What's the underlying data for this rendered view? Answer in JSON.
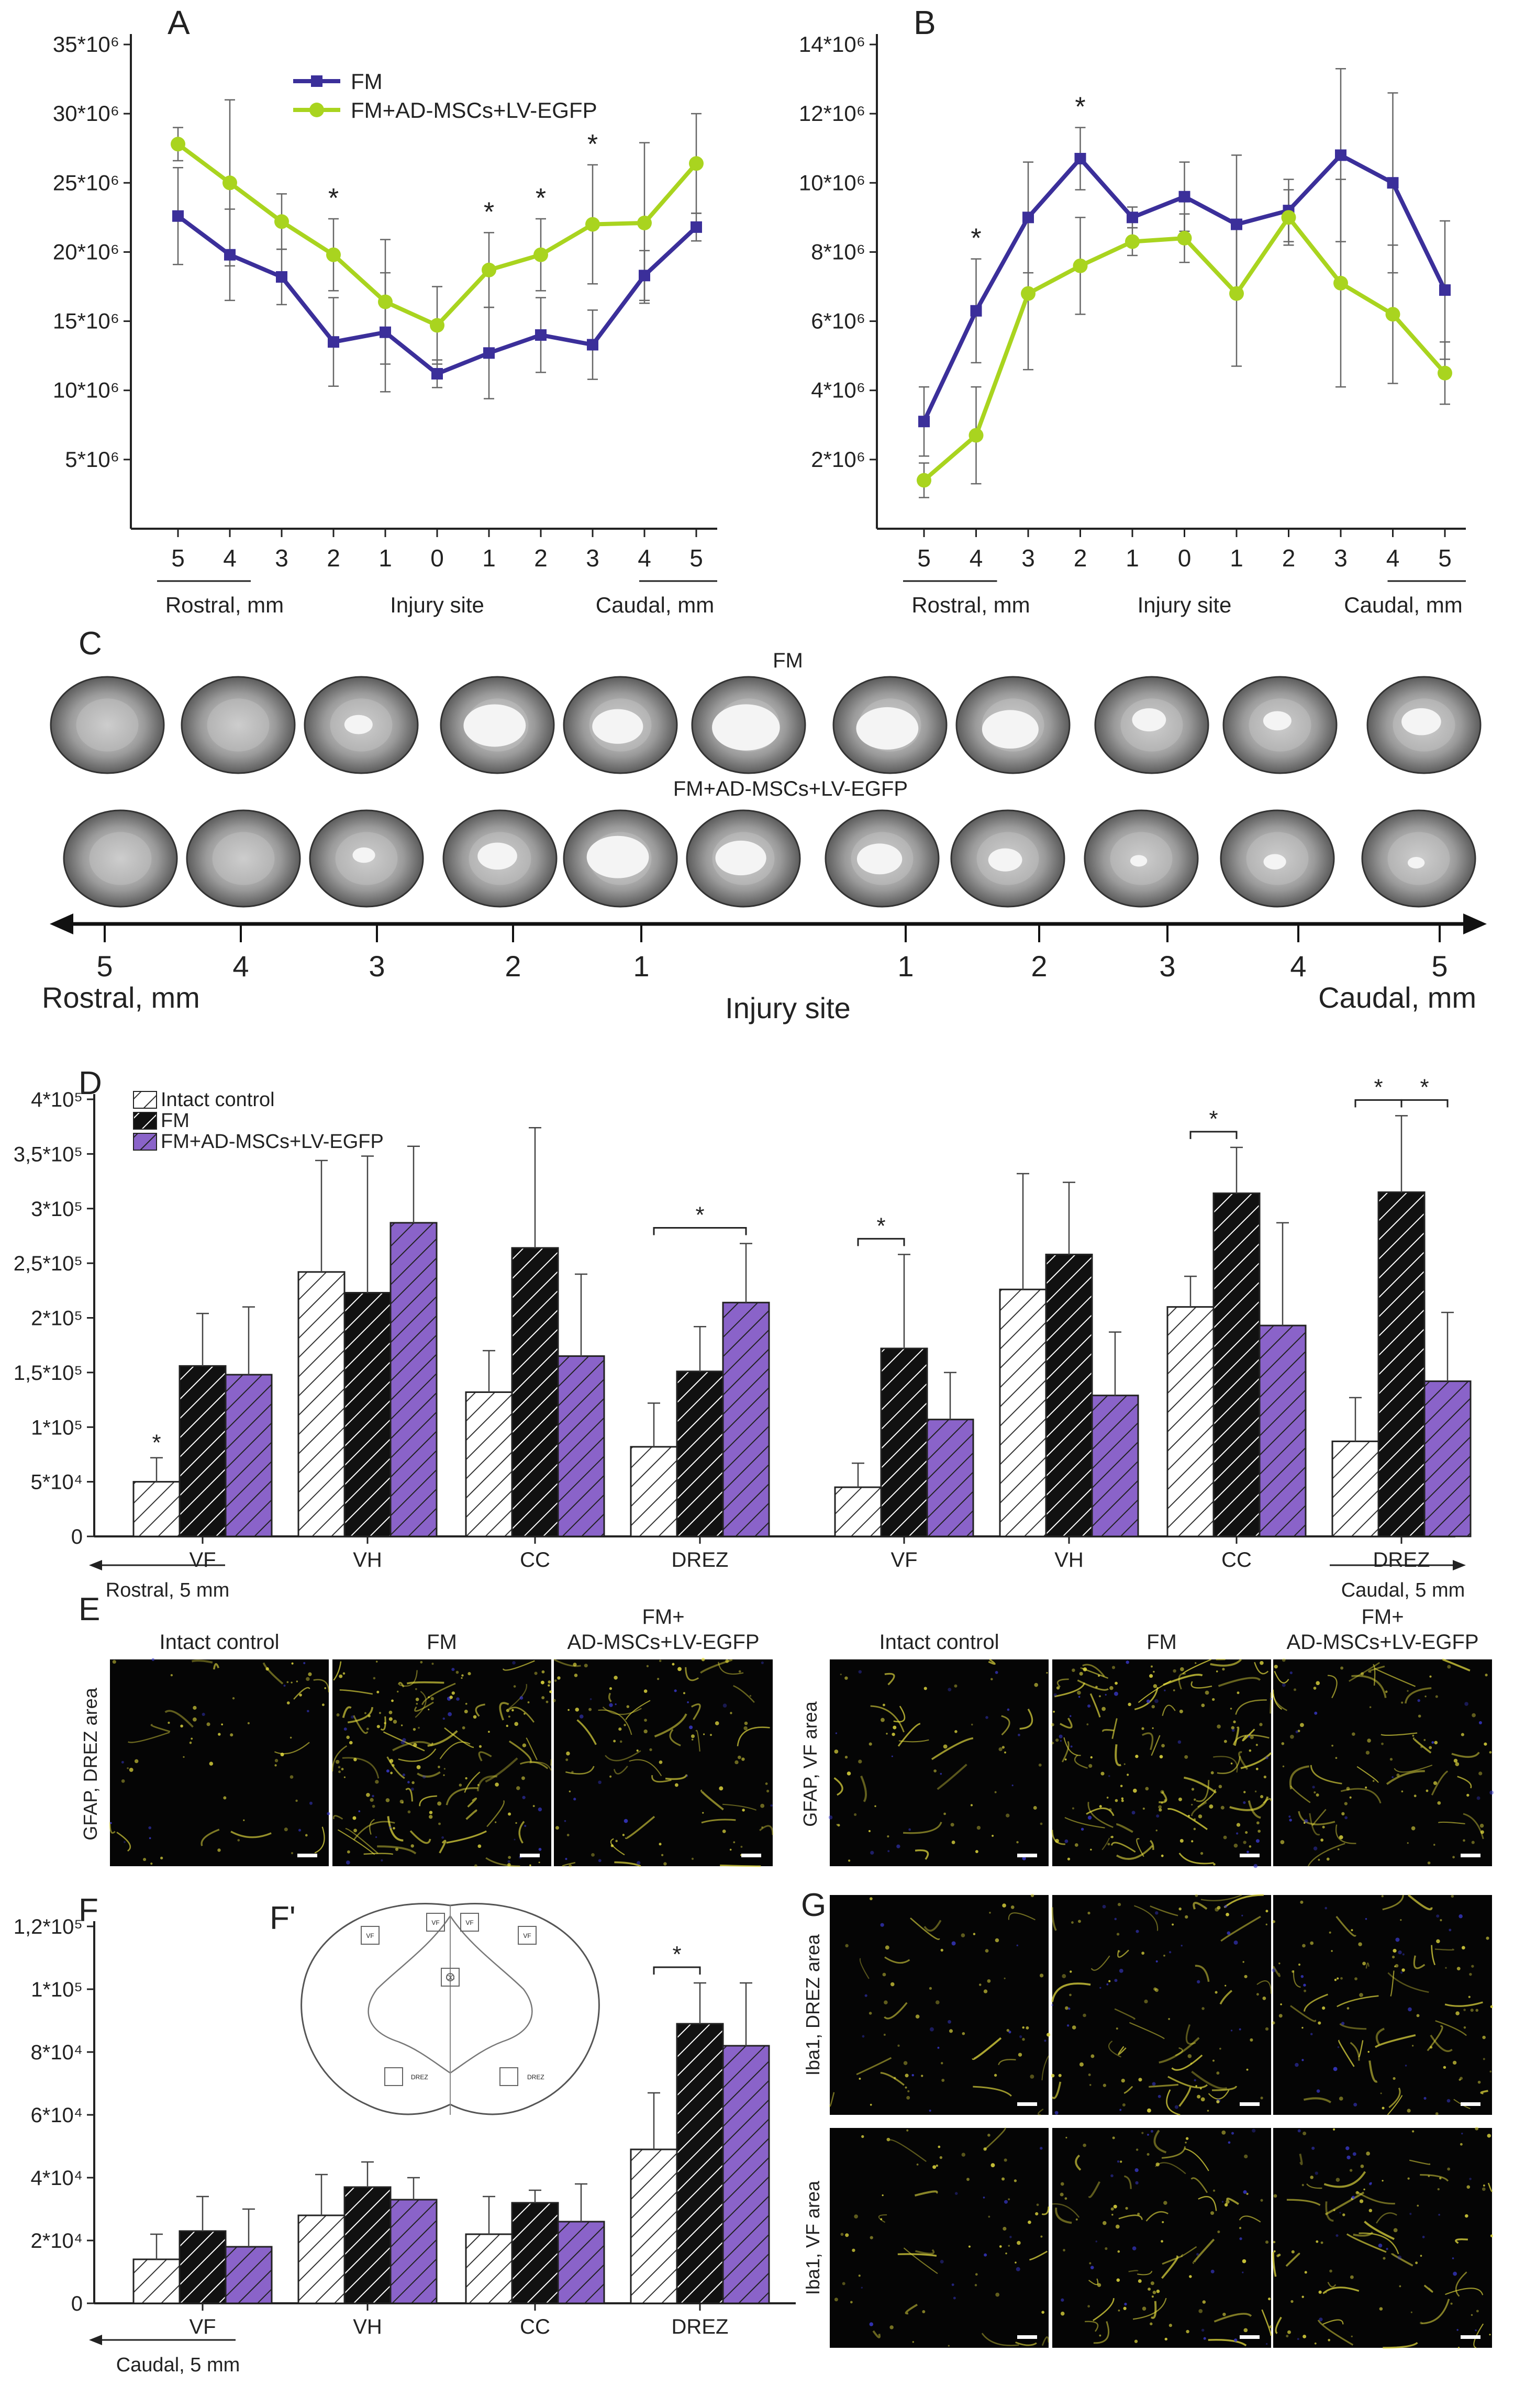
{
  "colors": {
    "fm": "#3b2f9a",
    "combo": "#a9d41f",
    "combo_bar": "#8a63c9",
    "intact_bar": "#ffffff",
    "fm_bar": "#111111",
    "axis": "#222222",
    "yellow": "#e8e040",
    "blue": "#3a3ad0"
  },
  "chart_data": [
    {
      "id": "A",
      "type": "line",
      "panel_label": "A",
      "categories": [
        "5",
        "4",
        "3",
        "2",
        "1",
        "0",
        "1",
        "2",
        "3",
        "4",
        "5"
      ],
      "yticks": [
        "5*10⁶",
        "10*10⁶",
        "15*10⁶",
        "20*10⁶",
        "25*10⁶",
        "30*10⁶",
        "35*10⁶"
      ],
      "ylim": [
        0,
        35
      ],
      "region_labels": [
        "Rostral, mm",
        "Injury site",
        "Caudal, mm"
      ],
      "legend": [
        "FM",
        "FM+AD-MSCs+LV-EGFP"
      ],
      "series": [
        {
          "name": "FM",
          "color": "#3b2f9a",
          "marker": "square",
          "values": [
            22.6,
            19.8,
            18.2,
            13.5,
            14.2,
            11.2,
            12.7,
            14.0,
            13.3,
            18.3,
            21.8
          ],
          "err": [
            3.5,
            3.3,
            2.0,
            3.2,
            4.3,
            1.0,
            3.3,
            2.7,
            2.5,
            1.8,
            1.0
          ]
        },
        {
          "name": "FM+AD-MSCs+LV-EGFP",
          "color": "#a9d41f",
          "marker": "circle",
          "values": [
            27.8,
            25.0,
            22.2,
            19.8,
            16.4,
            14.7,
            18.7,
            19.8,
            22.0,
            22.1,
            26.4
          ],
          "err": [
            1.2,
            6.0,
            2.0,
            2.6,
            4.5,
            2.8,
            2.7,
            2.6,
            4.3,
            5.8,
            3.6
          ]
        }
      ],
      "stars": [
        "",
        "",
        "",
        "*",
        "",
        "",
        "*",
        "*",
        "*",
        "",
        ""
      ]
    },
    {
      "id": "B",
      "type": "line",
      "panel_label": "B",
      "categories": [
        "5",
        "4",
        "3",
        "2",
        "1",
        "0",
        "1",
        "2",
        "3",
        "4",
        "5"
      ],
      "yticks": [
        "2*10⁶",
        "4*10⁶",
        "6*10⁶",
        "8*10⁶",
        "10*10⁶",
        "12*10⁶",
        "14*10⁶"
      ],
      "ylim": [
        0,
        14
      ],
      "region_labels": [
        "Rostral, mm",
        "Injury site",
        "Caudal, mm"
      ],
      "series": [
        {
          "name": "FM",
          "color": "#3b2f9a",
          "marker": "square",
          "values": [
            3.1,
            6.3,
            9.0,
            10.7,
            9.0,
            9.6,
            8.8,
            9.2,
            10.8,
            10.0,
            6.9
          ],
          "err": [
            1.0,
            1.5,
            1.6,
            0.9,
            0.3,
            1.0,
            2.0,
            0.9,
            2.5,
            2.6,
            2.0
          ]
        },
        {
          "name": "FM+AD-MSCs+LV-EGFP",
          "color": "#a9d41f",
          "marker": "circle",
          "values": [
            1.4,
            2.7,
            6.8,
            7.6,
            8.3,
            8.4,
            6.8,
            9.0,
            7.1,
            6.2,
            4.5
          ],
          "err": [
            0.5,
            1.4,
            2.2,
            1.4,
            0.4,
            0.7,
            2.1,
            0.8,
            3.0,
            2.0,
            0.9
          ]
        }
      ],
      "stars": [
        "",
        "*",
        "",
        "*",
        "",
        "",
        "",
        "",
        "",
        "",
        ""
      ]
    },
    {
      "id": "D",
      "type": "bar",
      "panel_label": "D",
      "groups": [
        "VF",
        "VH",
        "CC",
        "DREZ",
        "VF",
        "VH",
        "CC",
        "DREZ"
      ],
      "yticks": [
        "0",
        "5*10⁴",
        "1*10⁵",
        "1,5*10⁵",
        "2*10⁵",
        "2,5*10⁵",
        "3*10⁵",
        "3,5*10⁵",
        "4*10⁵"
      ],
      "ylim": [
        0,
        400000
      ],
      "legend": [
        "Intact control",
        "FM",
        "FM+AD-MSCs+LV-EGFP"
      ],
      "series": [
        {
          "name": "Intact control",
          "values": [
            50000,
            242000,
            132000,
            82000,
            45000,
            226000,
            210000,
            87000
          ],
          "err": [
            22000,
            102000,
            38000,
            40000,
            22000,
            106000,
            28000,
            40000
          ]
        },
        {
          "name": "FM",
          "values": [
            156000,
            223000,
            264000,
            151000,
            172000,
            258000,
            314000,
            315000
          ],
          "err": [
            48000,
            125000,
            110000,
            41000,
            86000,
            66000,
            42000,
            70000
          ]
        },
        {
          "name": "FM+AD-MSCs+LV-EGFP",
          "values": [
            148000,
            287000,
            165000,
            214000,
            107000,
            129000,
            193000,
            142000
          ],
          "err": [
            62000,
            70000,
            75000,
            54000,
            43000,
            58000,
            94000,
            63000
          ]
        }
      ],
      "star_single": {
        "group": 0,
        "text": "*"
      },
      "brackets": [
        {
          "group": 3,
          "from": 0,
          "to": 2,
          "text": "*"
        },
        {
          "group": 4,
          "from": 0,
          "to": 1,
          "text": "*"
        },
        {
          "group": 6,
          "from": 0,
          "to": 1,
          "text": "*"
        },
        {
          "group": 7,
          "from": 0,
          "to": 1,
          "text": "*"
        },
        {
          "group": 7,
          "from": 1,
          "to": 2,
          "text": "*"
        }
      ],
      "dir_left": "Rostral, 5 mm",
      "dir_right": "Caudal, 5 mm"
    },
    {
      "id": "F",
      "type": "bar",
      "panel_label": "F",
      "groups": [
        "VF",
        "VH",
        "CC",
        "DREZ"
      ],
      "yticks": [
        "0",
        "2*10⁴",
        "4*10⁴",
        "6*10⁴",
        "8*10⁴",
        "1*10⁵",
        "1,2*10⁵"
      ],
      "ylim": [
        0,
        120000
      ],
      "series": [
        {
          "name": "Intact control",
          "values": [
            14000,
            28000,
            22000,
            49000
          ],
          "err": [
            8000,
            13000,
            12000,
            18000
          ]
        },
        {
          "name": "FM",
          "values": [
            23000,
            37000,
            32000,
            89000
          ],
          "err": [
            11000,
            8000,
            4000,
            13000
          ]
        },
        {
          "name": "FM+AD-MSCs+LV-EGFP",
          "values": [
            18000,
            33000,
            26000,
            82000
          ],
          "err": [
            12000,
            7000,
            12000,
            20000
          ]
        }
      ],
      "brackets": [
        {
          "group": 3,
          "from": 0,
          "to": 1,
          "text": "*"
        }
      ],
      "dir_left": "Caudal, 5 mm"
    }
  ],
  "panel_c": {
    "label": "C",
    "row1_title": "FM",
    "row2_title": "FM+AD-MSCs+LV-EGFP",
    "axis_numbers": [
      "5",
      "4",
      "3",
      "2",
      "1",
      "1",
      "2",
      "3",
      "4",
      "5"
    ],
    "left_label": "Rostral, mm",
    "center_label": "Injury site",
    "right_label": "Caudal, mm"
  },
  "panel_e": {
    "label": "E",
    "left_titles": [
      "Intact control",
      "FM",
      "FM+\nAD-MSCs+LV-EGFP"
    ],
    "right_titles": [
      "Intact control",
      "FM",
      "FM+\nAD-MSCs+LV-EGFP"
    ],
    "left_side": "GFAP, DREZ area",
    "right_side": "GFAP, VF area"
  },
  "panel_fprime": {
    "label": "F'",
    "box_labels": [
      "VF",
      "VF",
      "VF",
      "VF",
      "CC",
      "DREZ",
      "DREZ"
    ]
  },
  "panel_g": {
    "label": "G",
    "row1_side": "Iba1, DREZ area",
    "row2_side": "Iba1, VF area"
  }
}
